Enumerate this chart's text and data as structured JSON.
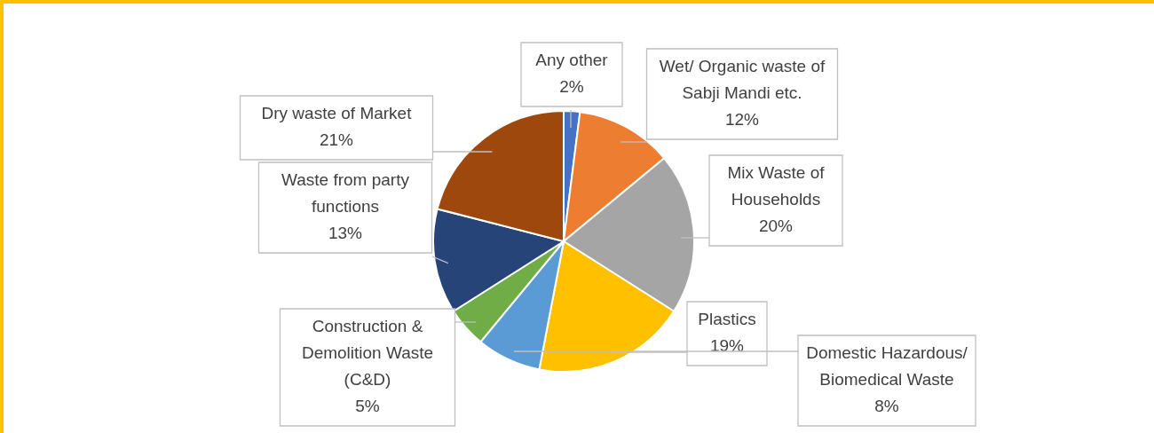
{
  "chart_data": {
    "type": "pie",
    "categories": [
      "Any other",
      "Wet/ Organic waste of Sabji Mandi etc.",
      "Mix Waste of Households",
      "Plastics",
      "Domestic Hazardous/ Biomedical Waste",
      "Construction & Demolition Waste (C&D)",
      "Waste from party functions",
      "Dry waste of Market"
    ],
    "values": [
      2,
      12,
      20,
      19,
      8,
      5,
      13,
      21
    ],
    "colors": [
      "#4472c4",
      "#ed7d31",
      "#a5a5a5",
      "#ffc000",
      "#5b9bd5",
      "#70ad47",
      "#264478",
      "#9e480e"
    ],
    "value_labels": [
      "2%",
      "12%",
      "20%",
      "19%",
      "8%",
      "5%",
      "13%",
      "21%"
    ],
    "legend": false
  }
}
